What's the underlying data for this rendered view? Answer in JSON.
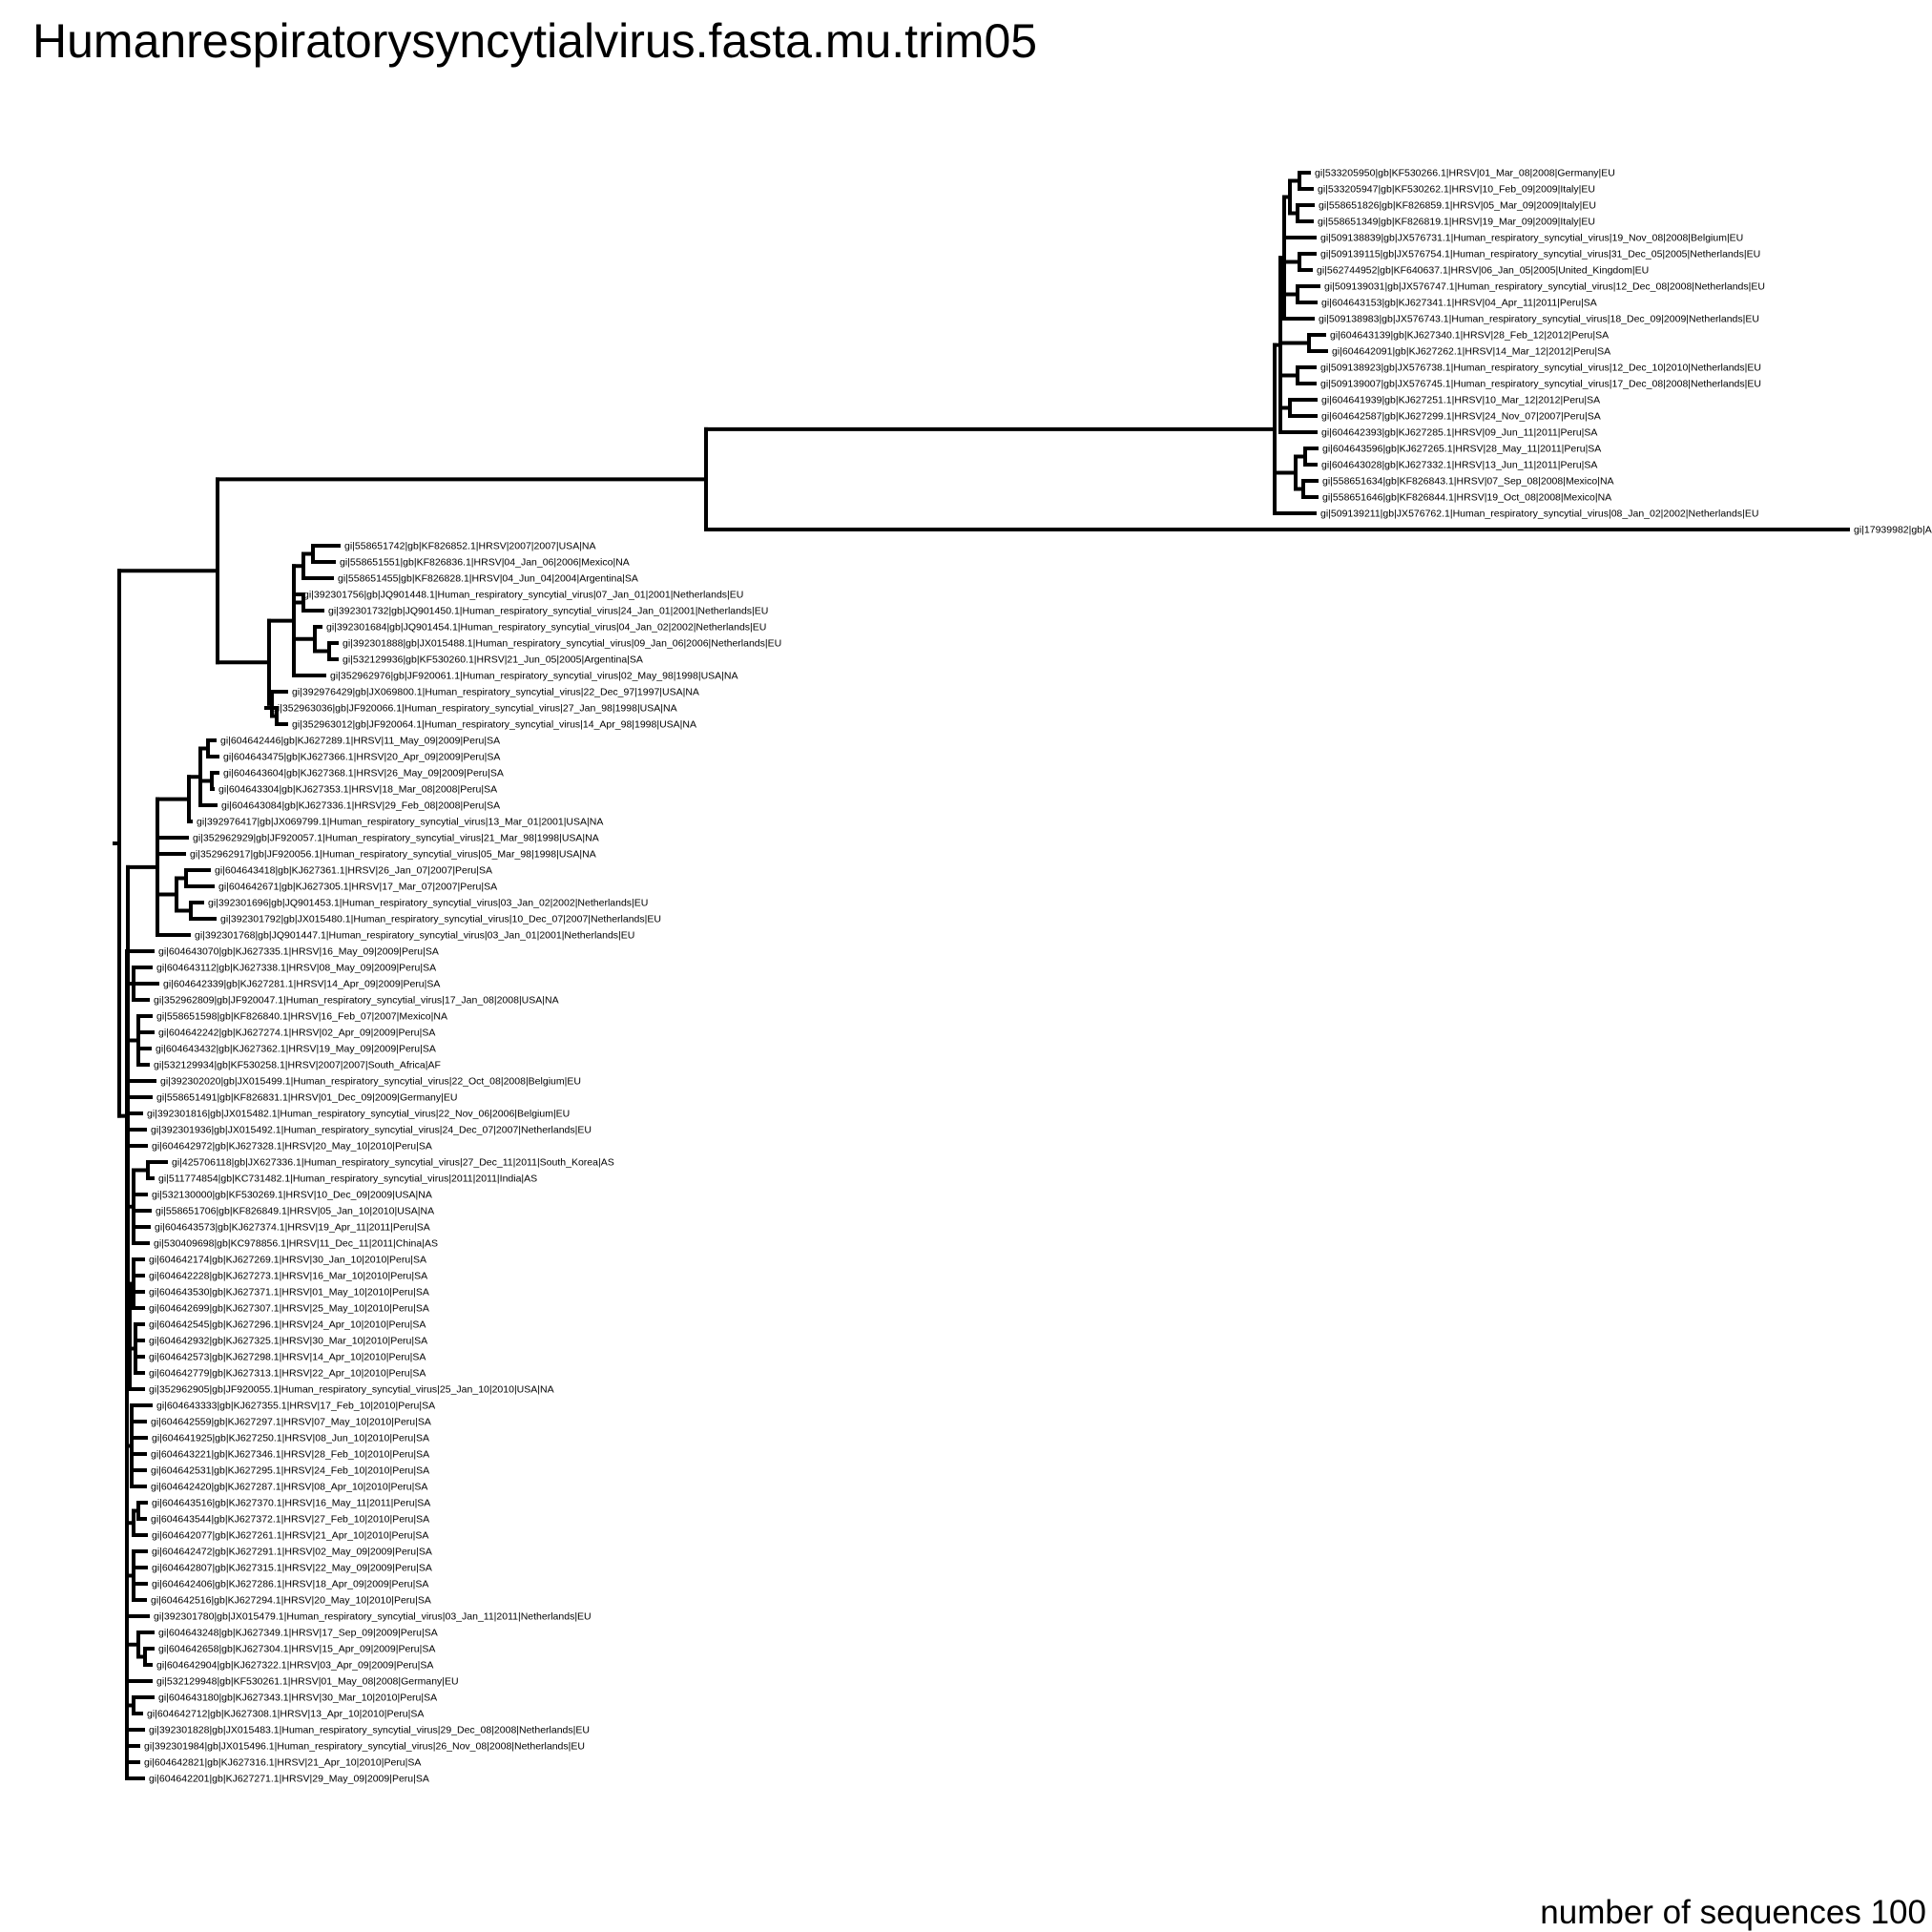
{
  "title": "Humanrespiratorysyncytialvirus.fasta.mu.trim05",
  "footer": "number of sequences 100",
  "leaves": [
    "gi|533205950|gb|KF530266.1|HRSV|01_Mar_08|2008|Germany|EU",
    "gi|533205947|gb|KF530262.1|HRSV|10_Feb_09|2009|Italy|EU",
    "gi|558651826|gb|KF826859.1|HRSV|05_Mar_09|2009|Italy|EU",
    "gi|558651349|gb|KF826819.1|HRSV|19_Mar_09|2009|Italy|EU",
    "gi|509138839|gb|JX576731.1|Human_respiratory_syncytial_virus|19_Nov_08|2008|Belgium|EU",
    "gi|509139115|gb|JX576754.1|Human_respiratory_syncytial_virus|31_Dec_05|2005|Netherlands|EU",
    "gi|562744952|gb|KF640637.1|HRSV|06_Jan_05|2005|United_Kingdom|EU",
    "gi|509139031|gb|JX576747.1|Human_respiratory_syncytial_virus|12_Dec_08|2008|Netherlands|EU",
    "gi|604643153|gb|KJ627341.1|HRSV|04_Apr_11|2011|Peru|SA",
    "gi|509138983|gb|JX576743.1|Human_respiratory_syncytial_virus|18_Dec_09|2009|Netherlands|EU",
    "gi|604643139|gb|KJ627340.1|HRSV|28_Feb_12|2012|Peru|SA",
    "gi|604642091|gb|KJ627262.1|HRSV|14_Mar_12|2012|Peru|SA",
    "gi|509138923|gb|JX576738.1|Human_respiratory_syncytial_virus|12_Dec_10|2010|Netherlands|EU",
    "gi|509139007|gb|JX576745.1|Human_respiratory_syncytial_virus|17_Dec_08|2008|Netherlands|EU",
    "gi|604641939|gb|KJ627251.1|HRSV|10_Mar_12|2012|Peru|SA",
    "gi|604642587|gb|KJ627299.1|HRSV|24_Nov_07|2007|Peru|SA",
    "gi|604642393|gb|KJ627285.1|HRSV|09_Jun_11|2011|Peru|SA",
    "gi|604643596|gb|KJ627265.1|HRSV|28_May_11|2011|Peru|SA",
    "gi|604643028|gb|KJ627332.1|HRSV|13_Jun_11|2011|Peru|SA",
    "gi|558651634|gb|KF826843.1|HRSV|07_Sep_08|2008|Mexico|NA",
    "gi|558651646|gb|KF826844.1|HRSV|19_Oct_08|2008|Mexico|NA",
    "gi|509139211|gb|JX576762.1|Human_respiratory_syncytial_virus|08_Jan_02|2002|Netherlands|EU",
    "gi|17939982|gb|A",
    "gi|558651742|gb|KF826852.1|HRSV|2007|2007|USA|NA",
    "gi|558651551|gb|KF826836.1|HRSV|04_Jan_06|2006|Mexico|NA",
    "gi|558651455|gb|KF826828.1|HRSV|04_Jun_04|2004|Argentina|SA",
    "gi|392301756|gb|JQ901448.1|Human_respiratory_syncytial_virus|07_Jan_01|2001|Netherlands|EU",
    "gi|392301732|gb|JQ901450.1|Human_respiratory_syncytial_virus|24_Jan_01|2001|Netherlands|EU",
    "gi|392301684|gb|JQ901454.1|Human_respiratory_syncytial_virus|04_Jan_02|2002|Netherlands|EU",
    "gi|392301888|gb|JX015488.1|Human_respiratory_syncytial_virus|09_Jan_06|2006|Netherlands|EU",
    "gi|532129936|gb|KF530260.1|HRSV|21_Jun_05|2005|Argentina|SA",
    "gi|352962976|gb|JF920061.1|Human_respiratory_syncytial_virus|02_May_98|1998|USA|NA",
    "gi|392976429|gb|JX069800.1|Human_respiratory_syncytial_virus|22_Dec_97|1997|USA|NA",
    "gi|352963036|gb|JF920066.1|Human_respiratory_syncytial_virus|27_Jan_98|1998|USA|NA",
    "gi|352963012|gb|JF920064.1|Human_respiratory_syncytial_virus|14_Apr_98|1998|USA|NA",
    "gi|604642446|gb|KJ627289.1|HRSV|11_May_09|2009|Peru|SA",
    "gi|604643475|gb|KJ627366.1|HRSV|20_Apr_09|2009|Peru|SA",
    "gi|604643604|gb|KJ627368.1|HRSV|26_May_09|2009|Peru|SA",
    "gi|604643304|gb|KJ627353.1|HRSV|18_Mar_08|2008|Peru|SA",
    "gi|604643084|gb|KJ627336.1|HRSV|29_Feb_08|2008|Peru|SA",
    "gi|392976417|gb|JX069799.1|Human_respiratory_syncytial_virus|13_Mar_01|2001|USA|NA",
    "gi|352962929|gb|JF920057.1|Human_respiratory_syncytial_virus|21_Mar_98|1998|USA|NA",
    "gi|352962917|gb|JF920056.1|Human_respiratory_syncytial_virus|05_Mar_98|1998|USA|NA",
    "gi|604643418|gb|KJ627361.1|HRSV|26_Jan_07|2007|Peru|SA",
    "gi|604642671|gb|KJ627305.1|HRSV|17_Mar_07|2007|Peru|SA",
    "gi|392301696|gb|JQ901453.1|Human_respiratory_syncytial_virus|03_Jan_02|2002|Netherlands|EU",
    "gi|392301792|gb|JX015480.1|Human_respiratory_syncytial_virus|10_Dec_07|2007|Netherlands|EU",
    "gi|392301768|gb|JQ901447.1|Human_respiratory_syncytial_virus|03_Jan_01|2001|Netherlands|EU",
    "gi|604643070|gb|KJ627335.1|HRSV|16_May_09|2009|Peru|SA",
    "gi|604643112|gb|KJ627338.1|HRSV|08_May_09|2009|Peru|SA",
    "gi|604642339|gb|KJ627281.1|HRSV|14_Apr_09|2009|Peru|SA",
    "gi|352962809|gb|JF920047.1|Human_respiratory_syncytial_virus|17_Jan_08|2008|USA|NA",
    "gi|558651598|gb|KF826840.1|HRSV|16_Feb_07|2007|Mexico|NA",
    "gi|604642242|gb|KJ627274.1|HRSV|02_Apr_09|2009|Peru|SA",
    "gi|604643432|gb|KJ627362.1|HRSV|19_May_09|2009|Peru|SA",
    "gi|532129934|gb|KF530258.1|HRSV|2007|2007|South_Africa|AF",
    "gi|392302020|gb|JX015499.1|Human_respiratory_syncytial_virus|22_Oct_08|2008|Belgium|EU",
    "gi|558651491|gb|KF826831.1|HRSV|01_Dec_09|2009|Germany|EU",
    "gi|392301816|gb|JX015482.1|Human_respiratory_syncytial_virus|22_Nov_06|2006|Belgium|EU",
    "gi|392301936|gb|JX015492.1|Human_respiratory_syncytial_virus|24_Dec_07|2007|Netherlands|EU",
    "gi|604642972|gb|KJ627328.1|HRSV|20_May_10|2010|Peru|SA",
    "gi|425706118|gb|JX627336.1|Human_respiratory_syncytial_virus|27_Dec_11|2011|South_Korea|AS",
    "gi|511774854|gb|KC731482.1|Human_respiratory_syncytial_virus|2011|2011|India|AS",
    "gi|532130000|gb|KF530269.1|HRSV|10_Dec_09|2009|USA|NA",
    "gi|558651706|gb|KF826849.1|HRSV|05_Jan_10|2010|USA|NA",
    "gi|604643573|gb|KJ627374.1|HRSV|19_Apr_11|2011|Peru|SA",
    "gi|530409698|gb|KC978856.1|HRSV|11_Dec_11|2011|China|AS",
    "gi|604642174|gb|KJ627269.1|HRSV|30_Jan_10|2010|Peru|SA",
    "gi|604642228|gb|KJ627273.1|HRSV|16_Mar_10|2010|Peru|SA",
    "gi|604643530|gb|KJ627371.1|HRSV|01_May_10|2010|Peru|SA",
    "gi|604642699|gb|KJ627307.1|HRSV|25_May_10|2010|Peru|SA",
    "gi|604642545|gb|KJ627296.1|HRSV|24_Apr_10|2010|Peru|SA",
    "gi|604642932|gb|KJ627325.1|HRSV|30_Mar_10|2010|Peru|SA",
    "gi|604642573|gb|KJ627298.1|HRSV|14_Apr_10|2010|Peru|SA",
    "gi|604642779|gb|KJ627313.1|HRSV|22_Apr_10|2010|Peru|SA",
    "gi|352962905|gb|JF920055.1|Human_respiratory_syncytial_virus|25_Jan_10|2010|USA|NA",
    "gi|604643333|gb|KJ627355.1|HRSV|17_Feb_10|2010|Peru|SA",
    "gi|604642559|gb|KJ627297.1|HRSV|07_May_10|2010|Peru|SA",
    "gi|604641925|gb|KJ627250.1|HRSV|08_Jun_10|2010|Peru|SA",
    "gi|604643221|gb|KJ627346.1|HRSV|28_Feb_10|2010|Peru|SA",
    "gi|604642531|gb|KJ627295.1|HRSV|24_Feb_10|2010|Peru|SA",
    "gi|604642420|gb|KJ627287.1|HRSV|08_Apr_10|2010|Peru|SA",
    "gi|604643516|gb|KJ627370.1|HRSV|16_May_11|2011|Peru|SA",
    "gi|604643544|gb|KJ627372.1|HRSV|27_Feb_10|2010|Peru|SA",
    "gi|604642077|gb|KJ627261.1|HRSV|21_Apr_10|2010|Peru|SA",
    "gi|604642472|gb|KJ627291.1|HRSV|02_May_09|2009|Peru|SA",
    "gi|604642807|gb|KJ627315.1|HRSV|22_May_09|2009|Peru|SA",
    "gi|604642406|gb|KJ627286.1|HRSV|18_Apr_09|2009|Peru|SA",
    "gi|604642516|gb|KJ627294.1|HRSV|20_May_10|2010|Peru|SA",
    "gi|392301780|gb|JX015479.1|Human_respiratory_syncytial_virus|03_Jan_11|2011|Netherlands|EU",
    "gi|604643248|gb|KJ627349.1|HRSV|17_Sep_09|2009|Peru|SA",
    "gi|604642658|gb|KJ627304.1|HRSV|15_Apr_09|2009|Peru|SA",
    "gi|604642904|gb|KJ627322.1|HRSV|03_Apr_09|2009|Peru|SA",
    "gi|532129948|gb|KF530261.1|HRSV|01_May_08|2008|Germany|EU",
    "gi|604643180|gb|KJ627343.1|HRSV|30_Mar_10|2010|Peru|SA",
    "gi|604642712|gb|KJ627308.1|HRSV|13_Apr_10|2010|Peru|SA",
    "gi|392301828|gb|JX015483.1|Human_respiratory_syncytial_virus|29_Dec_08|2008|Netherlands|EU",
    "gi|392301984|gb|JX015496.1|Human_respiratory_syncytial_virus|26_Nov_08|2008|Netherlands|EU",
    "gi|604642821|gb|KJ627316.1|HRSV|21_Apr_10|2010|Peru|SA",
    "gi|604642201|gb|KJ627271.1|HRSV|29_May_09|2009|Peru|SA"
  ]
}
